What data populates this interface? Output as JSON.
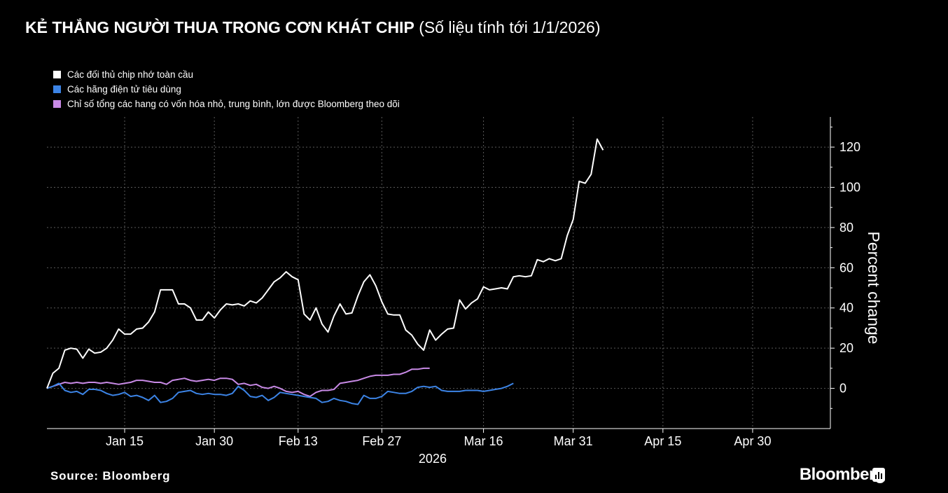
{
  "title": {
    "main": "KẺ THẮNG NGƯỜI THUA TRONG CƠN KHÁT CHIP",
    "sub": "(Số liệu tính tới 1/1/2026)"
  },
  "source": "Source: Bloomberg",
  "brand": "Bloomberg",
  "brand_icon": "bloomberg-chart-icon",
  "colors": {
    "background": "#000000",
    "grid": "#5a5a5a",
    "axis": "#ffffff",
    "series": [
      "#ffffff",
      "#3c84e6",
      "#c88ae6"
    ]
  },
  "chart_data": {
    "type": "line",
    "ylabel": "Percent change",
    "xlabel": "2026",
    "ylim": [
      -20,
      135
    ],
    "yticks": [
      0,
      20,
      40,
      60,
      80,
      100,
      120
    ],
    "xlim": [
      "2026-01-02",
      "2026-05-13"
    ],
    "xticks": [
      {
        "date": "2026-01-15",
        "label": "Jan 15"
      },
      {
        "date": "2026-01-30",
        "label": "Jan 30"
      },
      {
        "date": "2026-02-13",
        "label": "Feb 13"
      },
      {
        "date": "2026-02-27",
        "label": "Feb 27"
      },
      {
        "date": "2026-03-16",
        "label": "Mar 16"
      },
      {
        "date": "2026-03-31",
        "label": "Mar 31"
      },
      {
        "date": "2026-04-15",
        "label": "Apr 15"
      },
      {
        "date": "2026-04-30",
        "label": "Apr 30"
      }
    ],
    "grid": true,
    "legend_position": "top-left",
    "series": [
      {
        "name": "Các đối thủ chip nhớ toàn cầu",
        "points": [
          [
            "2026-01-02",
            0
          ],
          [
            "2026-01-03",
            7.5
          ],
          [
            "2026-01-04",
            10
          ],
          [
            "2026-01-05",
            19
          ],
          [
            "2026-01-06",
            20
          ],
          [
            "2026-01-07",
            19.5
          ],
          [
            "2026-01-08",
            15
          ],
          [
            "2026-01-09",
            19.5
          ],
          [
            "2026-01-10",
            17.5
          ],
          [
            "2026-01-11",
            18
          ],
          [
            "2026-01-12",
            20
          ],
          [
            "2026-01-13",
            24
          ],
          [
            "2026-01-14",
            29.5
          ],
          [
            "2026-01-15",
            27
          ],
          [
            "2026-01-16",
            27
          ],
          [
            "2026-01-17",
            29.5
          ],
          [
            "2026-01-18",
            30
          ],
          [
            "2026-01-19",
            33
          ],
          [
            "2026-01-20",
            38
          ],
          [
            "2026-01-21",
            49
          ],
          [
            "2026-01-22",
            49
          ],
          [
            "2026-01-23",
            49
          ],
          [
            "2026-01-24",
            42
          ],
          [
            "2026-01-25",
            42
          ],
          [
            "2026-01-26",
            40
          ],
          [
            "2026-01-27",
            34
          ],
          [
            "2026-01-28",
            34
          ],
          [
            "2026-01-29",
            38
          ],
          [
            "2026-01-30",
            35
          ],
          [
            "2026-01-31",
            39
          ],
          [
            "2026-02-01",
            42
          ],
          [
            "2026-02-02",
            41.5
          ],
          [
            "2026-02-03",
            42
          ],
          [
            "2026-02-04",
            41
          ],
          [
            "2026-02-05",
            43.5
          ],
          [
            "2026-02-06",
            42.5
          ],
          [
            "2026-02-07",
            45
          ],
          [
            "2026-02-08",
            49
          ],
          [
            "2026-02-09",
            53
          ],
          [
            "2026-02-10",
            55
          ],
          [
            "2026-02-11",
            58
          ],
          [
            "2026-02-12",
            55.5
          ],
          [
            "2026-02-13",
            54
          ],
          [
            "2026-02-14",
            37
          ],
          [
            "2026-02-15",
            34
          ],
          [
            "2026-02-16",
            40
          ],
          [
            "2026-02-17",
            32
          ],
          [
            "2026-02-18",
            28
          ],
          [
            "2026-02-19",
            36
          ],
          [
            "2026-02-20",
            42
          ],
          [
            "2026-02-21",
            37
          ],
          [
            "2026-02-22",
            37.5
          ],
          [
            "2026-02-23",
            46
          ],
          [
            "2026-02-24",
            53
          ],
          [
            "2026-02-25",
            56.5
          ],
          [
            "2026-02-26",
            51
          ],
          [
            "2026-02-27",
            43
          ],
          [
            "2026-02-28",
            37
          ],
          [
            "2026-03-01",
            36.5
          ],
          [
            "2026-03-02",
            36.5
          ],
          [
            "2026-03-03",
            29
          ],
          [
            "2026-03-04",
            26.5
          ],
          [
            "2026-03-05",
            22
          ],
          [
            "2026-03-06",
            19
          ],
          [
            "2026-03-07",
            29
          ],
          [
            "2026-03-08",
            24
          ],
          [
            "2026-03-09",
            27
          ],
          [
            "2026-03-10",
            29.5
          ],
          [
            "2026-03-11",
            30
          ],
          [
            "2026-03-12",
            44
          ],
          [
            "2026-03-13",
            39.5
          ],
          [
            "2026-03-14",
            42.5
          ],
          [
            "2026-03-15",
            44.5
          ],
          [
            "2026-03-16",
            50.5
          ],
          [
            "2026-03-17",
            49
          ],
          [
            "2026-03-18",
            49.5
          ],
          [
            "2026-03-19",
            50
          ],
          [
            "2026-03-20",
            49.5
          ],
          [
            "2026-03-21",
            55.5
          ],
          [
            "2026-03-22",
            56
          ],
          [
            "2026-03-23",
            55.5
          ],
          [
            "2026-03-24",
            56
          ],
          [
            "2026-03-25",
            64
          ],
          [
            "2026-03-26",
            63
          ],
          [
            "2026-03-27",
            64.5
          ],
          [
            "2026-03-28",
            63.5
          ],
          [
            "2026-03-29",
            64.5
          ],
          [
            "2026-03-30",
            76
          ],
          [
            "2026-03-31",
            84
          ],
          [
            "2026-04-01",
            103
          ],
          [
            "2026-04-02",
            102
          ],
          [
            "2026-04-03",
            106.5
          ],
          [
            "2026-04-04",
            124
          ],
          [
            "2026-04-05",
            118.5
          ]
        ]
      },
      {
        "name": "Các hãng điện tử tiêu dùng",
        "points": [
          [
            "2026-01-02",
            0
          ],
          [
            "2026-01-03",
            1
          ],
          [
            "2026-01-04",
            2.5
          ],
          [
            "2026-01-05",
            -1
          ],
          [
            "2026-01-06",
            -2
          ],
          [
            "2026-01-07",
            -1.5
          ],
          [
            "2026-01-08",
            -3
          ],
          [
            "2026-01-09",
            -0.5
          ],
          [
            "2026-01-10",
            -0.5
          ],
          [
            "2026-01-11",
            -1
          ],
          [
            "2026-01-12",
            -2.5
          ],
          [
            "2026-01-13",
            -3.5
          ],
          [
            "2026-01-14",
            -3
          ],
          [
            "2026-01-15",
            -2
          ],
          [
            "2026-01-16",
            -4
          ],
          [
            "2026-01-17",
            -3.5
          ],
          [
            "2026-01-18",
            -4.5
          ],
          [
            "2026-01-19",
            -6
          ],
          [
            "2026-01-20",
            -3.5
          ],
          [
            "2026-01-21",
            -7
          ],
          [
            "2026-01-22",
            -6.5
          ],
          [
            "2026-01-23",
            -5
          ],
          [
            "2026-01-24",
            -2
          ],
          [
            "2026-01-25",
            -1.5
          ],
          [
            "2026-01-26",
            -1
          ],
          [
            "2026-01-27",
            -2.5
          ],
          [
            "2026-01-28",
            -3
          ],
          [
            "2026-01-29",
            -2.5
          ],
          [
            "2026-01-30",
            -3
          ],
          [
            "2026-01-31",
            -3
          ],
          [
            "2026-02-01",
            -3.5
          ],
          [
            "2026-02-02",
            -2.5
          ],
          [
            "2026-02-03",
            1
          ],
          [
            "2026-02-04",
            -1
          ],
          [
            "2026-02-05",
            -4
          ],
          [
            "2026-02-06",
            -4.5
          ],
          [
            "2026-02-07",
            -3.5
          ],
          [
            "2026-02-08",
            -6
          ],
          [
            "2026-02-09",
            -4.5
          ],
          [
            "2026-02-10",
            -2
          ],
          [
            "2026-02-11",
            -2.5
          ],
          [
            "2026-02-12",
            -3
          ],
          [
            "2026-02-13",
            -3.5
          ],
          [
            "2026-02-14",
            -4
          ],
          [
            "2026-02-15",
            -4.5
          ],
          [
            "2026-02-16",
            -5
          ],
          [
            "2026-02-17",
            -7
          ],
          [
            "2026-02-18",
            -6.5
          ],
          [
            "2026-02-19",
            -5
          ],
          [
            "2026-02-20",
            -6
          ],
          [
            "2026-02-21",
            -6.5
          ],
          [
            "2026-02-22",
            -7.5
          ],
          [
            "2026-02-23",
            -8
          ],
          [
            "2026-02-24",
            -3.5
          ],
          [
            "2026-02-25",
            -5
          ],
          [
            "2026-02-26",
            -5
          ],
          [
            "2026-02-27",
            -4
          ],
          [
            "2026-02-28",
            -1.5
          ],
          [
            "2026-03-01",
            -2
          ],
          [
            "2026-03-02",
            -2.5
          ],
          [
            "2026-03-03",
            -2.5
          ],
          [
            "2026-03-04",
            -1.5
          ],
          [
            "2026-03-05",
            0.5
          ],
          [
            "2026-03-06",
            1
          ],
          [
            "2026-03-07",
            0.5
          ],
          [
            "2026-03-08",
            1
          ],
          [
            "2026-03-09",
            -1
          ],
          [
            "2026-03-10",
            -1.5
          ],
          [
            "2026-03-11",
            -1.5
          ],
          [
            "2026-03-12",
            -1.5
          ],
          [
            "2026-03-13",
            -1
          ],
          [
            "2026-03-14",
            -1
          ],
          [
            "2026-03-15",
            -1
          ],
          [
            "2026-03-16",
            -1.5
          ],
          [
            "2026-03-17",
            -1
          ],
          [
            "2026-03-18",
            -0.5
          ],
          [
            "2026-03-19",
            0
          ],
          [
            "2026-03-20",
            1
          ],
          [
            "2026-03-21",
            2.5
          ]
        ]
      },
      {
        "name": "Chỉ số tổng các hang có vốn hóa nhỏ, trung bình, lớn được Bloomberg theo dõi",
        "points": [
          [
            "2026-01-02",
            0
          ],
          [
            "2026-01-03",
            1
          ],
          [
            "2026-01-04",
            2
          ],
          [
            "2026-01-05",
            3
          ],
          [
            "2026-01-06",
            2.5
          ],
          [
            "2026-01-07",
            3
          ],
          [
            "2026-01-08",
            2.5
          ],
          [
            "2026-01-09",
            3
          ],
          [
            "2026-01-10",
            3
          ],
          [
            "2026-01-11",
            2.5
          ],
          [
            "2026-01-12",
            3
          ],
          [
            "2026-01-13",
            2.5
          ],
          [
            "2026-01-14",
            2
          ],
          [
            "2026-01-15",
            2.5
          ],
          [
            "2026-01-16",
            3
          ],
          [
            "2026-01-17",
            4
          ],
          [
            "2026-01-18",
            4
          ],
          [
            "2026-01-19",
            3.5
          ],
          [
            "2026-01-20",
            3
          ],
          [
            "2026-01-21",
            3
          ],
          [
            "2026-01-22",
            2
          ],
          [
            "2026-01-23",
            4
          ],
          [
            "2026-01-24",
            4.5
          ],
          [
            "2026-01-25",
            5
          ],
          [
            "2026-01-26",
            4
          ],
          [
            "2026-01-27",
            3.5
          ],
          [
            "2026-01-28",
            4
          ],
          [
            "2026-01-29",
            4.5
          ],
          [
            "2026-01-30",
            4
          ],
          [
            "2026-01-31",
            5
          ],
          [
            "2026-02-01",
            5
          ],
          [
            "2026-02-02",
            4.5
          ],
          [
            "2026-02-03",
            2
          ],
          [
            "2026-02-04",
            2.5
          ],
          [
            "2026-02-05",
            1.5
          ],
          [
            "2026-02-06",
            2
          ],
          [
            "2026-02-07",
            0.5
          ],
          [
            "2026-02-08",
            0
          ],
          [
            "2026-02-09",
            1
          ],
          [
            "2026-02-10",
            0
          ],
          [
            "2026-02-11",
            -1.5
          ],
          [
            "2026-02-12",
            -2
          ],
          [
            "2026-02-13",
            -1.5
          ],
          [
            "2026-02-14",
            -3
          ],
          [
            "2026-02-15",
            -4
          ],
          [
            "2026-02-16",
            -2
          ],
          [
            "2026-02-17",
            -1
          ],
          [
            "2026-02-18",
            -1
          ],
          [
            "2026-02-19",
            -0.5
          ],
          [
            "2026-02-20",
            2.5
          ],
          [
            "2026-02-21",
            3
          ],
          [
            "2026-02-22",
            3.5
          ],
          [
            "2026-02-23",
            4
          ],
          [
            "2026-02-24",
            5
          ],
          [
            "2026-02-25",
            6
          ],
          [
            "2026-02-26",
            6.5
          ],
          [
            "2026-02-27",
            6.5
          ],
          [
            "2026-02-28",
            6.5
          ],
          [
            "2026-03-01",
            7
          ],
          [
            "2026-03-02",
            7
          ],
          [
            "2026-03-03",
            8
          ],
          [
            "2026-03-04",
            9.5
          ],
          [
            "2026-03-05",
            9.5
          ],
          [
            "2026-03-06",
            10
          ],
          [
            "2026-03-07",
            10
          ]
        ]
      }
    ]
  }
}
